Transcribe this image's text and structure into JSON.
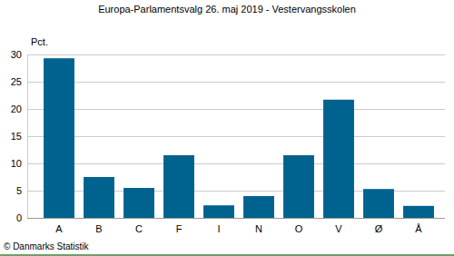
{
  "chart_data": {
    "type": "bar",
    "title": "Europa-Parlamentsvalg 26. maj 2019 - Vestervangsskolen",
    "y_label": "Pct.",
    "categories": [
      "A",
      "B",
      "C",
      "F",
      "I",
      "N",
      "O",
      "V",
      "Ø",
      "Å"
    ],
    "values": [
      29.3,
      7.5,
      5.5,
      11.5,
      2.3,
      4.0,
      11.5,
      21.7,
      5.3,
      2.2
    ],
    "color": "#00628f",
    "ylim": [
      0,
      30
    ],
    "yticks": [
      0,
      5,
      10,
      15,
      20,
      25,
      30
    ],
    "grid": true,
    "annotations": [
      "© Danmarks Statistik"
    ]
  }
}
